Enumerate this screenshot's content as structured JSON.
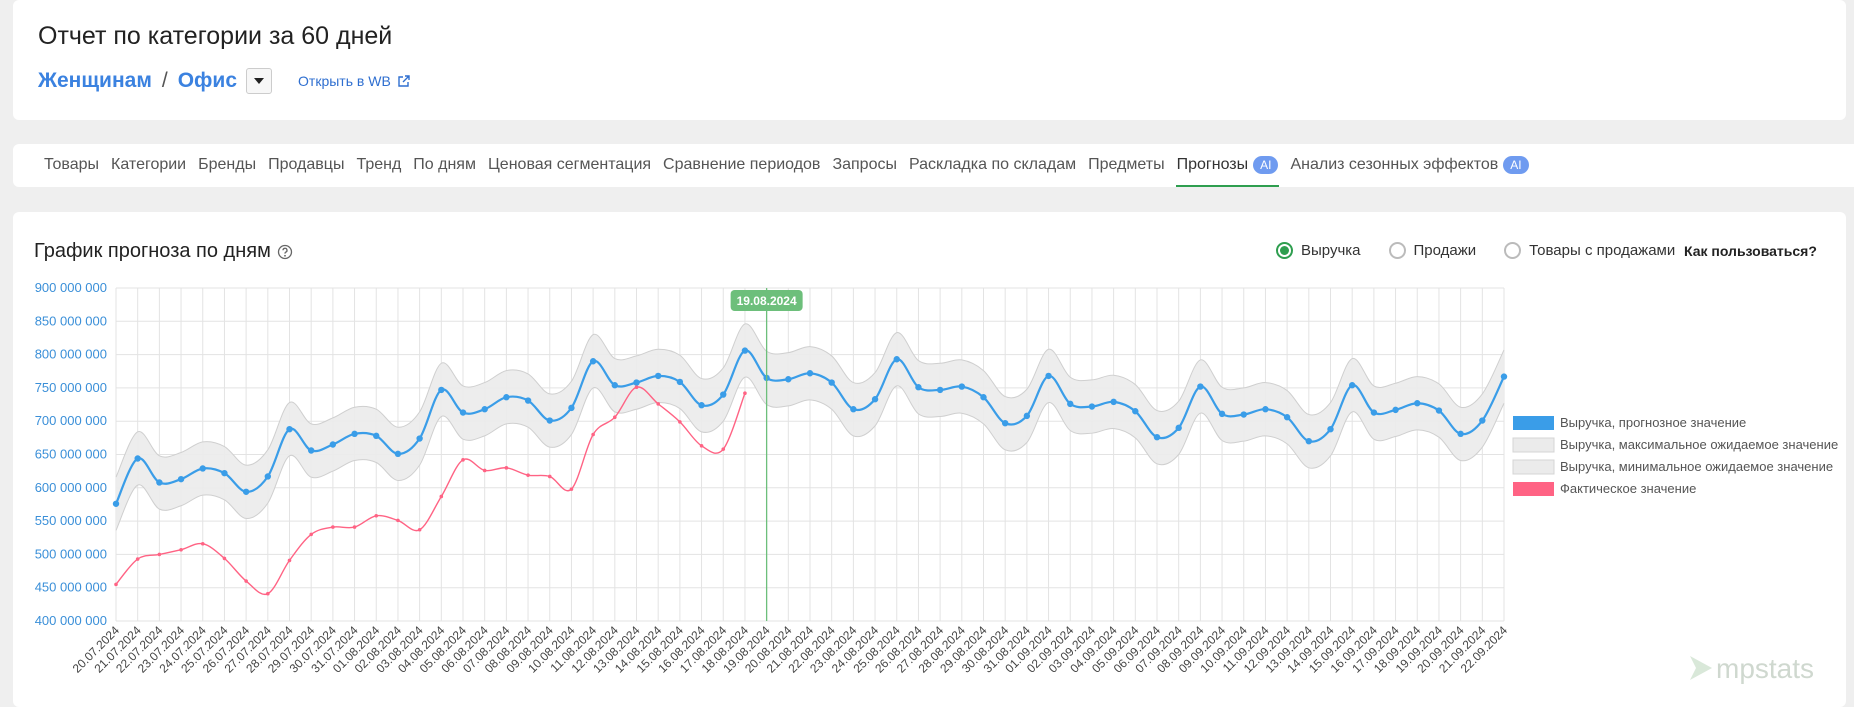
{
  "header": {
    "title": "Отчет по категории за 60 дней",
    "crumbs": [
      "Женщинам",
      "Офис"
    ],
    "separator": "/",
    "link": "Открыть в WB"
  },
  "tabs": {
    "items": [
      {
        "label": "Товары"
      },
      {
        "label": "Категории"
      },
      {
        "label": "Бренды"
      },
      {
        "label": "Продавцы"
      },
      {
        "label": "Тренд"
      },
      {
        "label": "По дням"
      },
      {
        "label": "Ценовая сегментация"
      },
      {
        "label": "Сравнение периодов"
      },
      {
        "label": "Запросы"
      },
      {
        "label": "Раскладка по складам"
      },
      {
        "label": "Предметы"
      },
      {
        "label": "Прогнозы",
        "badge": "AI"
      },
      {
        "label": "Анализ сезонных эффектов",
        "badge": "AI"
      }
    ],
    "active": 11
  },
  "controls": {
    "options": [
      "Выручка",
      "Продажи",
      "Товары с продажами"
    ],
    "selected": 0,
    "help": "Как пользоваться?"
  },
  "logo": "mpstats",
  "chart_data": {
    "type": "line",
    "title": "График прогноза по дням",
    "categories": [
      "20.07.2024",
      "21.07.2024",
      "22.07.2024",
      "23.07.2024",
      "24.07.2024",
      "25.07.2024",
      "26.07.2024",
      "27.07.2024",
      "28.07.2024",
      "29.07.2024",
      "30.07.2024",
      "31.07.2024",
      "01.08.2024",
      "02.08.2024",
      "03.08.2024",
      "04.08.2024",
      "05.08.2024",
      "06.08.2024",
      "07.08.2024",
      "08.08.2024",
      "09.08.2024",
      "10.08.2024",
      "11.08.2024",
      "12.08.2024",
      "13.08.2024",
      "14.08.2024",
      "15.08.2024",
      "16.08.2024",
      "17.08.2024",
      "18.08.2024",
      "19.08.2024",
      "20.08.2024",
      "21.08.2024",
      "22.08.2024",
      "23.08.2024",
      "24.08.2024",
      "25.08.2024",
      "26.08.2024",
      "27.08.2024",
      "28.08.2024",
      "29.08.2024",
      "30.08.2024",
      "31.08.2024",
      "01.09.2024",
      "02.09.2024",
      "03.09.2024",
      "04.09.2024",
      "05.09.2024",
      "06.09.2024",
      "07.09.2024",
      "08.09.2024",
      "09.09.2024",
      "10.09.2024",
      "11.09.2024",
      "12.09.2024",
      "13.09.2024",
      "14.09.2024",
      "15.09.2024",
      "16.09.2024",
      "17.09.2024",
      "18.09.2024",
      "19.09.2024",
      "20.09.2024",
      "21.09.2024",
      "22.09.2024"
    ],
    "series": [
      {
        "name": "Выручка, прогнозное значение",
        "color": "#3a9de8",
        "markers": true,
        "values": [
          576000000,
          644000000,
          608000000,
          613000000,
          629000000,
          622000000,
          594000000,
          617000000,
          688000000,
          656000000,
          665000000,
          681000000,
          678000000,
          651000000,
          674000000,
          747000000,
          713000000,
          718000000,
          736000000,
          731000000,
          701000000,
          720000000,
          790000000,
          754000000,
          758000000,
          768000000,
          759000000,
          724000000,
          740000000,
          806000000,
          765000000,
          763000000,
          772000000,
          758000000,
          718000000,
          733000000,
          793000000,
          751000000,
          747000000,
          752000000,
          736000000,
          697000000,
          708000000,
          768000000,
          726000000,
          722000000,
          729000000,
          715000000,
          676000000,
          690000000,
          752000000,
          711000000,
          710000000,
          718000000,
          706000000,
          670000000,
          688000000,
          754000000,
          713000000,
          717000000,
          727000000,
          716000000,
          681000000,
          701000000,
          767000000
        ]
      },
      {
        "name": "Выручка, максимальное ожидаемое значение",
        "color": "#ebebeb",
        "band": true,
        "values": [
          616000000,
          684000000,
          648000000,
          653000000,
          669000000,
          662000000,
          634000000,
          657000000,
          728000000,
          696000000,
          705000000,
          721000000,
          718000000,
          691000000,
          714000000,
          787000000,
          753000000,
          758000000,
          776000000,
          771000000,
          741000000,
          760000000,
          830000000,
          794000000,
          798000000,
          808000000,
          799000000,
          764000000,
          780000000,
          846000000,
          805000000,
          803000000,
          812000000,
          798000000,
          758000000,
          773000000,
          833000000,
          791000000,
          787000000,
          792000000,
          776000000,
          737000000,
          748000000,
          808000000,
          766000000,
          762000000,
          769000000,
          755000000,
          716000000,
          730000000,
          792000000,
          751000000,
          750000000,
          758000000,
          746000000,
          710000000,
          728000000,
          794000000,
          753000000,
          757000000,
          767000000,
          756000000,
          721000000,
          741000000,
          807000000
        ]
      },
      {
        "name": "Выручка, минимальное ожидаемое значение",
        "color": "#ebebeb",
        "band": true,
        "values": [
          536000000,
          604000000,
          568000000,
          573000000,
          589000000,
          582000000,
          554000000,
          577000000,
          648000000,
          616000000,
          625000000,
          641000000,
          638000000,
          611000000,
          634000000,
          707000000,
          673000000,
          678000000,
          696000000,
          691000000,
          661000000,
          680000000,
          750000000,
          714000000,
          718000000,
          728000000,
          719000000,
          684000000,
          700000000,
          766000000,
          725000000,
          723000000,
          732000000,
          718000000,
          678000000,
          693000000,
          753000000,
          711000000,
          707000000,
          712000000,
          696000000,
          657000000,
          668000000,
          728000000,
          686000000,
          682000000,
          689000000,
          675000000,
          636000000,
          650000000,
          712000000,
          671000000,
          670000000,
          678000000,
          666000000,
          630000000,
          648000000,
          714000000,
          673000000,
          677000000,
          687000000,
          676000000,
          641000000,
          661000000,
          727000000
        ]
      },
      {
        "name": "Фактическое значение",
        "color": "#ff6384",
        "markers": true,
        "values": [
          455000000,
          493000000,
          500000000,
          507000000,
          516000000,
          494000000,
          460000000,
          441000000,
          491000000,
          530000000,
          541000000,
          541000000,
          558000000,
          551000000,
          537000000,
          587000000,
          642000000,
          626000000,
          630000000,
          619000000,
          617000000,
          598000000,
          680000000,
          706000000,
          751000000,
          726000000,
          699000000,
          663000000,
          658000000,
          742000000,
          null,
          null,
          null,
          null,
          null,
          null,
          null,
          null,
          null,
          null,
          null,
          null,
          null,
          null,
          null,
          null,
          null,
          null,
          null,
          null,
          null,
          null,
          null,
          null,
          null,
          null,
          null,
          null,
          null,
          null,
          null,
          null,
          null,
          null,
          null
        ]
      }
    ],
    "ylim": [
      400000000,
      900000000
    ],
    "yticks": [
      {
        "value": 400000000,
        "label": "400 000 000"
      },
      {
        "value": 450000000,
        "label": "450 000 000"
      },
      {
        "value": 500000000,
        "label": "500 000 000"
      },
      {
        "value": 550000000,
        "label": "550 000 000"
      },
      {
        "value": 600000000,
        "label": "600 000 000"
      },
      {
        "value": 650000000,
        "label": "650 000 000"
      },
      {
        "value": 700000000,
        "label": "700 000 000"
      },
      {
        "value": 750000000,
        "label": "750 000 000"
      },
      {
        "value": 800000000,
        "label": "800 000 000"
      },
      {
        "value": 850000000,
        "label": "850 000 000"
      },
      {
        "value": 900000000,
        "label": "900 000 000"
      }
    ],
    "grid": true,
    "legend": "right",
    "annotation": {
      "label": "19.08.2024",
      "color": "#6dbf7b"
    }
  }
}
